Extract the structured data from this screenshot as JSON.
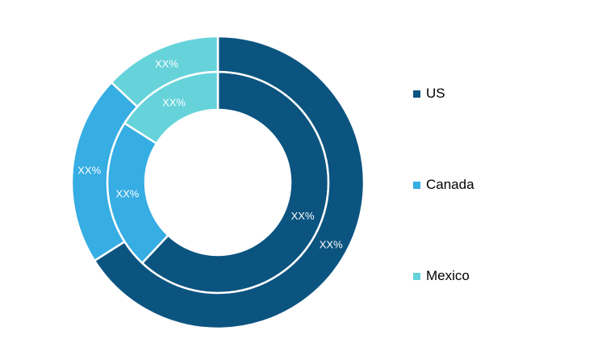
{
  "chart_data": {
    "type": "pie",
    "variant": "double-donut",
    "categories": [
      "US",
      "Canada",
      "Mexico"
    ],
    "colors": [
      "#0b5480",
      "#36ade3",
      "#66d3da"
    ],
    "series": [
      {
        "values": [
          62,
          22,
          16
        ],
        "labels": [
          "XX%",
          "XX%",
          "XX%"
        ]
      },
      {
        "values": [
          66,
          21,
          13
        ],
        "labels": [
          "XX%",
          "XX%",
          "XX%"
        ]
      }
    ],
    "legend_position": "right",
    "title": ""
  }
}
